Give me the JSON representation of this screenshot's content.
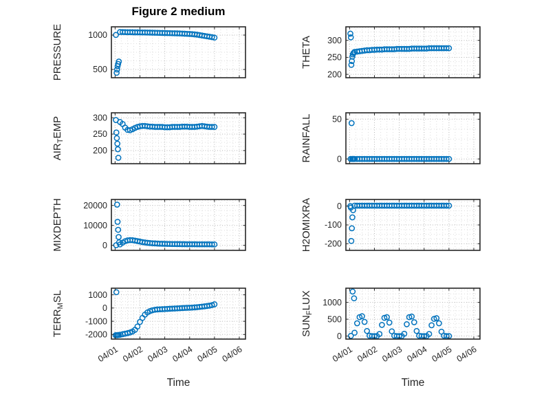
{
  "chart_data": {
    "type": "scatter",
    "title": "Figure 2 medium",
    "xlabel": "Time",
    "marker": "o",
    "marker_color": "#0072BD",
    "axis_color": "#262626",
    "major_grid_color": "#b5b5b5",
    "minor_grid_color": "#dcdcdc",
    "xlim": [
      -0.15,
      5.25
    ],
    "xticks": [
      0,
      1,
      2,
      3,
      4,
      5
    ],
    "xtick_labels": [
      "04/01",
      "04/02",
      "04/03",
      "04/04",
      "04/05",
      "04/06"
    ],
    "shared_band_x": [
      0.2,
      0.3,
      0.4,
      0.5,
      0.6,
      0.7,
      0.8,
      0.9,
      1.0,
      1.1,
      1.2,
      1.3,
      1.4,
      1.5,
      1.6,
      1.7,
      1.8,
      1.9,
      2.0,
      2.1,
      2.2,
      2.3,
      2.4,
      2.5,
      2.6,
      2.7,
      2.8,
      2.9,
      3.0,
      3.1,
      3.2,
      3.3,
      3.4,
      3.5,
      3.6,
      3.7,
      3.8,
      3.9,
      4.0
    ],
    "subplots": [
      {
        "name": "PRESSURE",
        "ylabel_parts": [
          {
            "t": "PRESSURE",
            "sub": false
          }
        ],
        "ylim": [
          380,
          1120
        ],
        "yticks": [
          500,
          1000
        ],
        "pre_x": [
          0.03,
          0.06,
          0.08,
          0.1,
          0.12,
          0.15
        ],
        "pre_y": [
          1002,
          452,
          500,
          548,
          580,
          615
        ],
        "band_y": [
          1045,
          1044,
          1043,
          1042,
          1042,
          1041,
          1040,
          1040,
          1039,
          1038,
          1038,
          1037,
          1036,
          1035,
          1034,
          1033,
          1032,
          1031,
          1030,
          1029,
          1028,
          1027,
          1026,
          1025,
          1024,
          1022,
          1020,
          1018,
          1016,
          1014,
          1010,
          1006,
          1000,
          994,
          988,
          982,
          976,
          970,
          963
        ]
      },
      {
        "name": "THETA",
        "ylabel_parts": [
          {
            "t": "THETA",
            "sub": false
          }
        ],
        "ylim": [
          190,
          340
        ],
        "yticks": [
          200,
          250,
          300
        ],
        "pre_x": [
          0.03,
          0.05,
          0.07,
          0.09,
          0.11,
          0.13,
          0.16
        ],
        "pre_y": [
          320,
          309,
          228,
          239,
          252,
          259,
          263
        ],
        "band_y": [
          266,
          267,
          268,
          269,
          270,
          271,
          271,
          272,
          272,
          273,
          273,
          273,
          274,
          274,
          274,
          274,
          274,
          275,
          275,
          275,
          275,
          275,
          275,
          276,
          276,
          276,
          276,
          276,
          276,
          276,
          277,
          277,
          277,
          277,
          277,
          277,
          277,
          277,
          277
        ]
      },
      {
        "name": "AIR_TEMP",
        "ylabel_parts": [
          {
            "t": "AIR",
            "sub": false
          },
          {
            "t": "T",
            "sub": true
          },
          {
            "t": "EMP",
            "sub": false
          }
        ],
        "ylim": [
          160,
          315
        ],
        "yticks": [
          200,
          250,
          300
        ],
        "pre_x": [
          0.03,
          0.05,
          0.07,
          0.09,
          0.11,
          0.13
        ],
        "pre_y": [
          293,
          255,
          238,
          221,
          204,
          178
        ],
        "band_y": [
          287,
          281,
          270,
          263,
          262,
          265,
          269,
          272,
          274,
          275,
          275,
          274,
          273,
          273,
          272,
          272,
          272,
          272,
          271,
          271,
          271,
          272,
          272,
          272,
          272,
          273,
          273,
          273,
          272,
          272,
          272,
          273,
          274,
          275,
          274,
          273,
          272,
          272,
          272
        ]
      },
      {
        "name": "RAINFALL",
        "ylabel_parts": [
          {
            "t": "RAINFALL",
            "sub": false
          }
        ],
        "ylim": [
          -6,
          58
        ],
        "yticks": [
          0,
          50
        ],
        "pre_x": [
          0.04,
          0.08,
          0.1,
          0.13,
          0.16
        ],
        "pre_y": [
          0,
          45,
          0,
          0,
          0
        ],
        "band_y": [
          0,
          0,
          0,
          0,
          0,
          0,
          0,
          0,
          0,
          0,
          0,
          0,
          0,
          0,
          0,
          0,
          0,
          0,
          0,
          0,
          0,
          0,
          0,
          0,
          0,
          0,
          0,
          0,
          0,
          0,
          0,
          0,
          0,
          0,
          0,
          0,
          0,
          0,
          0
        ]
      },
      {
        "name": "MIXDEPTH",
        "ylabel_parts": [
          {
            "t": "MIXDEPTH",
            "sub": false
          }
        ],
        "ylim": [
          -2500,
          23000
        ],
        "yticks": [
          0,
          10000,
          20000
        ],
        "pre_x": [
          0.04,
          0.08,
          0.1,
          0.12,
          0.14,
          0.16
        ],
        "pre_y": [
          100,
          20400,
          11800,
          7800,
          4200,
          1500
        ],
        "band_y": [
          500,
          1400,
          2100,
          2500,
          2650,
          2600,
          2400,
          2150,
          1900,
          1650,
          1450,
          1280,
          1150,
          1050,
          970,
          900,
          850,
          800,
          760,
          730,
          700,
          680,
          660,
          640,
          620,
          600,
          590,
          580,
          570,
          560,
          550,
          545,
          540,
          535,
          530,
          525,
          520,
          515,
          510
        ]
      },
      {
        "name": "H2OMIXRA",
        "ylabel_parts": [
          {
            "t": "H2OMIXRA",
            "sub": false
          }
        ],
        "ylim": [
          -235,
          35
        ],
        "yticks": [
          -200,
          -100,
          0
        ],
        "pre_x": [
          0.03,
          0.05,
          0.07,
          0.09,
          0.11,
          0.14
        ],
        "pre_y": [
          0,
          -8,
          -185,
          -118,
          -60,
          -22
        ],
        "band_y": [
          2,
          2,
          2,
          2,
          2,
          2,
          2,
          2,
          2,
          2,
          2,
          2,
          2,
          2,
          2,
          2,
          2,
          2,
          2,
          2,
          2,
          2,
          2,
          2,
          2,
          2,
          2,
          2,
          2,
          2,
          2,
          2,
          2,
          2,
          2,
          2,
          2,
          2,
          2
        ]
      },
      {
        "name": "TERR_MSL",
        "ylabel_parts": [
          {
            "t": "TERR",
            "sub": false
          },
          {
            "t": "M",
            "sub": true
          },
          {
            "t": "SL",
            "sub": false
          }
        ],
        "ylim": [
          -2350,
          1500
        ],
        "yticks": [
          -2000,
          -1000,
          0,
          1000
        ],
        "pre_x": [
          0.02,
          0.05,
          0.07,
          0.1,
          0.14
        ],
        "pre_y": [
          -2060,
          1200,
          -2060,
          -2050,
          -2040
        ],
        "band_y": [
          -2020,
          -1980,
          -1940,
          -1900,
          -1850,
          -1780,
          -1650,
          -1400,
          -1050,
          -750,
          -500,
          -330,
          -230,
          -170,
          -130,
          -110,
          -95,
          -85,
          -75,
          -65,
          -55,
          -45,
          -35,
          -25,
          -15,
          -5,
          5,
          15,
          25,
          35,
          50,
          65,
          85,
          105,
          125,
          150,
          180,
          220,
          280
        ]
      },
      {
        "name": "SUN_FLUX",
        "ylabel_parts": [
          {
            "t": "SUN",
            "sub": false
          },
          {
            "t": "F",
            "sub": true
          },
          {
            "t": "LUX",
            "sub": false
          }
        ],
        "ylim": [
          -90,
          1420
        ],
        "yticks": [
          0,
          500,
          1000
        ],
        "pre_x": [
          0.05,
          0.12,
          0.18
        ],
        "pre_y": [
          5,
          1320,
          1120
        ],
        "band_y": [
          100,
          380,
          560,
          590,
          420,
          150,
          10,
          0,
          0,
          0,
          60,
          330,
          540,
          560,
          400,
          140,
          10,
          0,
          0,
          0,
          70,
          350,
          560,
          580,
          410,
          150,
          10,
          0,
          0,
          0,
          60,
          320,
          510,
          530,
          380,
          130,
          10,
          0,
          0
        ]
      }
    ]
  }
}
